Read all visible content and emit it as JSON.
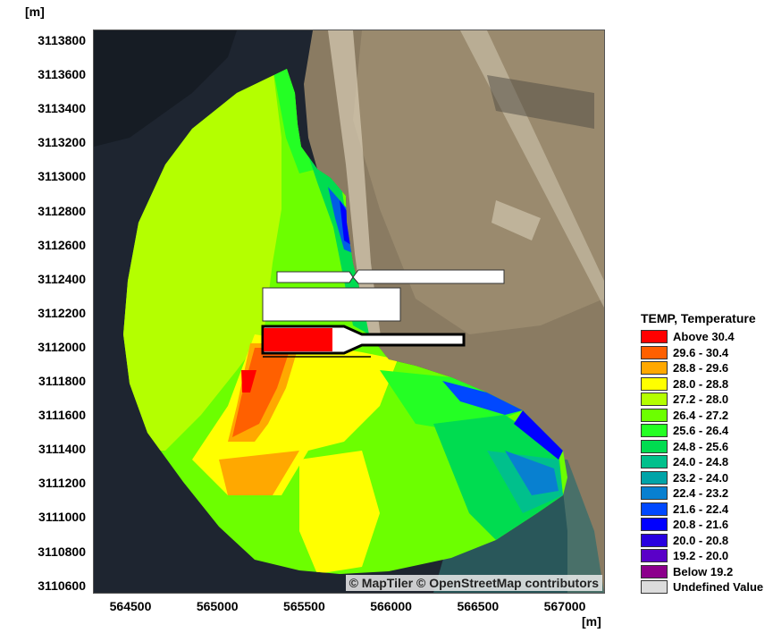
{
  "axes": {
    "y_unit": "[m]",
    "x_unit": "[m]",
    "y_ticks": [
      "3113800",
      "3113600",
      "3113400",
      "3113200",
      "3113000",
      "3112800",
      "3112600",
      "3112400",
      "3112200",
      "3112000",
      "3111800",
      "3111600",
      "3111400",
      "3111200",
      "3111000",
      "3110800",
      "3110600"
    ],
    "x_ticks": [
      "564500",
      "565000",
      "565500",
      "566000",
      "566500",
      "567000"
    ]
  },
  "map": {
    "attribution": "© MapTiler © OpenStreetMap contributors"
  },
  "legend": {
    "title": "TEMP, Temperature",
    "items": [
      {
        "label": "Above 30.4",
        "color": "#ff0000"
      },
      {
        "label": "29.6 - 30.4",
        "color": "#ff6000"
      },
      {
        "label": "28.8 - 29.6",
        "color": "#ffa800"
      },
      {
        "label": "28.0 - 28.8",
        "color": "#ffff00"
      },
      {
        "label": "27.2 - 28.0",
        "color": "#b4ff00"
      },
      {
        "label": "26.4 - 27.2",
        "color": "#6cff00"
      },
      {
        "label": "25.6 - 26.4",
        "color": "#24ff24"
      },
      {
        "label": "24.8 - 25.6",
        "color": "#00dc50"
      },
      {
        "label": "24.0 - 24.8",
        "color": "#00c08c"
      },
      {
        "label": "23.2 - 24.0",
        "color": "#00a4a8"
      },
      {
        "label": "22.4 - 23.2",
        "color": "#0880d0"
      },
      {
        "label": "21.6 - 22.4",
        "color": "#0048ff"
      },
      {
        "label": "20.8 - 21.6",
        "color": "#0000ff"
      },
      {
        "label": "20.0 - 20.8",
        "color": "#2800e0"
      },
      {
        "label": "19.2 - 20.0",
        "color": "#5a00c8"
      },
      {
        "label": "Below 19.2",
        "color": "#8c008c"
      },
      {
        "label": "Undefined Value",
        "color": "#dcdcdc"
      }
    ]
  }
}
